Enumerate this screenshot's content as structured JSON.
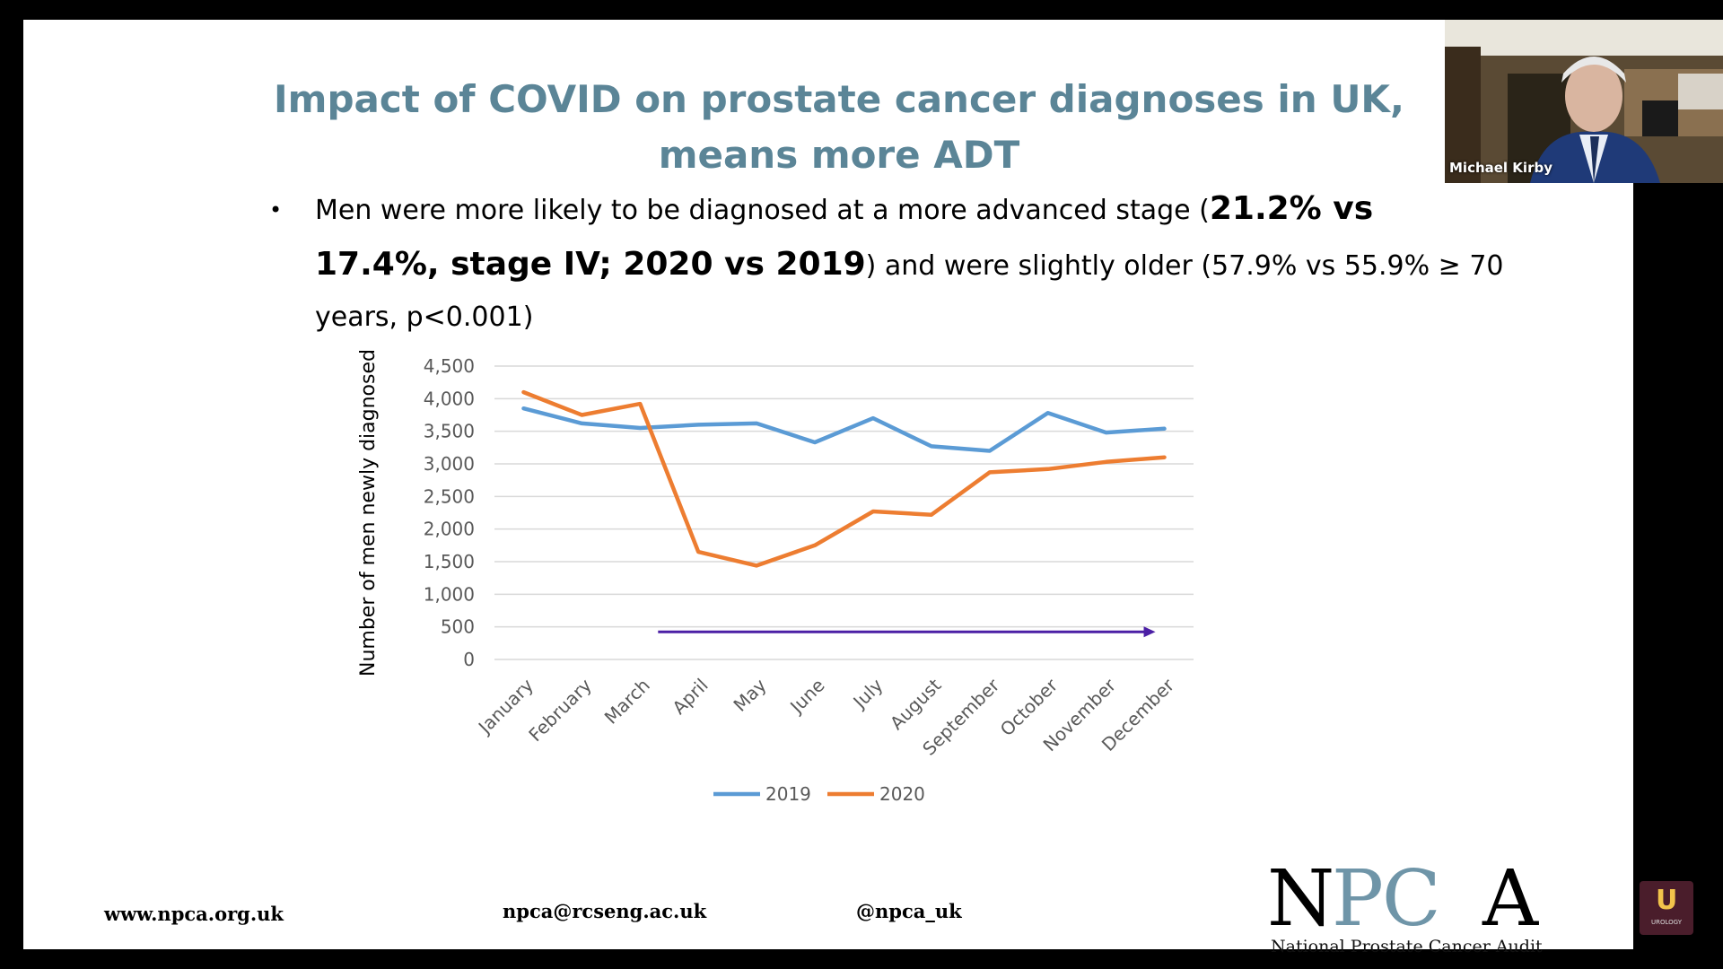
{
  "slide": {
    "title_line1": "Impact of COVID on prostate cancer diagnoses in UK,",
    "title_line2": "means more ADT",
    "bullet": {
      "line1_normal": "Men were more likely to be diagnosed at a more advanced stage (",
      "line1_bold": "21.2% vs",
      "line2_bold": "17.4%, stage IV; 2020 vs 2019",
      "line2_normal": ") and were slightly older (57.9% vs 55.9% ≥ 70",
      "line3_normal": "years, p<0.001)"
    },
    "footer": {
      "website": "www.npca.org.uk",
      "email": "npca@rcseng.ac.uk",
      "twitter": "@npca_uk"
    },
    "logo": {
      "letters_n": "N",
      "letters_pc": "PC",
      "letters_a": "A",
      "subtitle": "National Prostate Cancer Audit"
    }
  },
  "webcam": {
    "name": "Michael Kirby"
  },
  "corner_logo": {
    "letter": "U",
    "text": "UROLOGY"
  },
  "colors": {
    "series_2019": "#5b9bd5",
    "series_2020": "#ed7d31",
    "arrow": "#4b1fa5",
    "title": "#5b8597"
  },
  "chart_data": {
    "type": "line",
    "title": "",
    "xlabel": "",
    "ylabel": "Number of men newly diagnosed",
    "ylim": [
      0,
      4500
    ],
    "yticks": [
      0,
      500,
      1000,
      1500,
      2000,
      2500,
      3000,
      3500,
      4000,
      4500
    ],
    "ytick_labels": [
      "0",
      "500",
      "1,000",
      "1,500",
      "2,000",
      "2,500",
      "3,000",
      "3,500",
      "4,000",
      "4,500"
    ],
    "categories": [
      "January",
      "February",
      "March",
      "April",
      "May",
      "June",
      "July",
      "August",
      "September",
      "October",
      "November",
      "December"
    ],
    "series": [
      {
        "name": "2019",
        "color": "#5b9bd5",
        "values": [
          3850,
          3620,
          3550,
          3600,
          3620,
          3330,
          3700,
          3270,
          3200,
          3780,
          3480,
          3540
        ]
      },
      {
        "name": "2020",
        "color": "#ed7d31",
        "values": [
          4100,
          3750,
          3920,
          1650,
          1440,
          1750,
          2270,
          2220,
          2870,
          2920,
          3030,
          3100
        ]
      }
    ],
    "annotation": {
      "type": "arrow",
      "from_category": "March",
      "to_category": "December",
      "y_value": 450
    },
    "legend": "bottom"
  }
}
